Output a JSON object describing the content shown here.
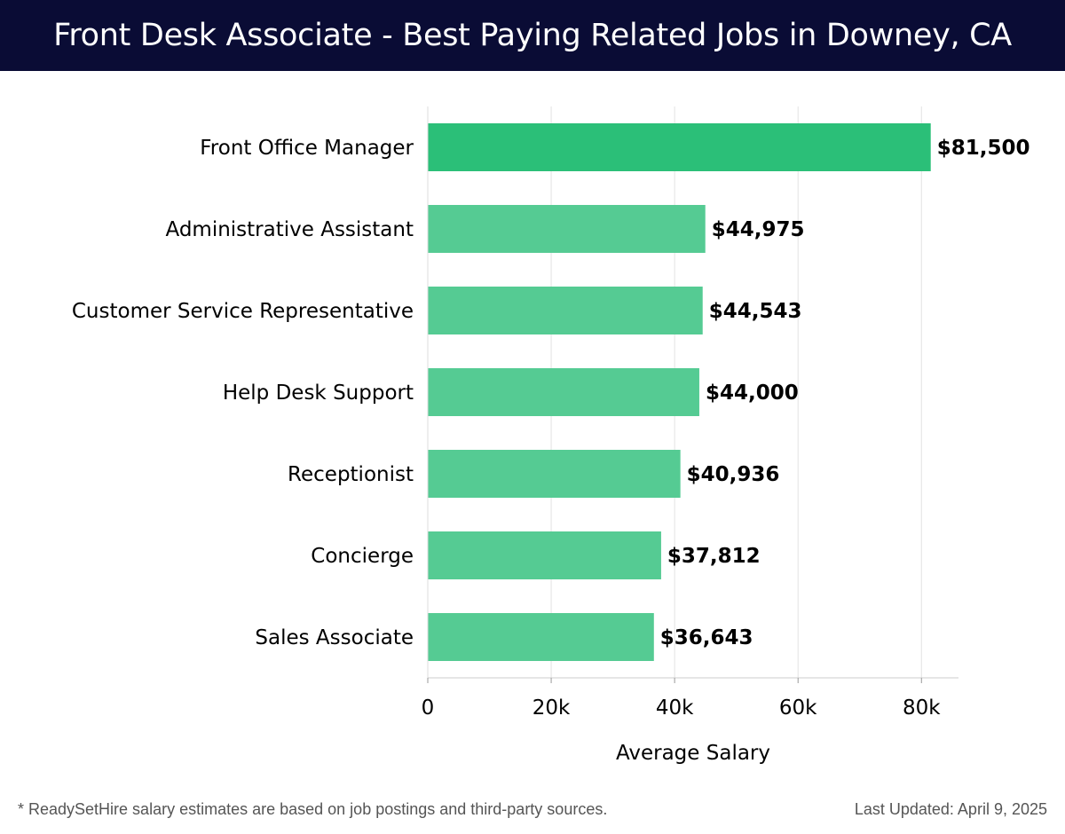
{
  "header": {
    "title": "Front Desk Associate - Best Paying Related Jobs in Downey, CA"
  },
  "chart_data": {
    "type": "bar",
    "orientation": "horizontal",
    "categories": [
      "Front Office Manager",
      "Administrative Assistant",
      "Customer Service Representative",
      "Help Desk Support",
      "Receptionist",
      "Concierge",
      "Sales Associate"
    ],
    "values": [
      81500,
      44975,
      44543,
      44000,
      40936,
      37812,
      36643
    ],
    "value_labels": [
      "$81,500",
      "$44,975",
      "$44,543",
      "$44,000",
      "$40,936",
      "$37,812",
      "$36,643"
    ],
    "xlabel": "Average Salary",
    "xlim": [
      0,
      86000
    ],
    "xticks": [
      0,
      20000,
      40000,
      60000,
      80000
    ],
    "xtick_labels": [
      "0",
      "20k",
      "40k",
      "60k",
      "80k"
    ],
    "grid": true,
    "colors": {
      "highlight": "#2bbf78",
      "bar": "#55cb93"
    }
  },
  "footer": {
    "note": "* ReadySetHire salary estimates are based on job postings and third-party sources.",
    "updated": "Last Updated: April 9, 2025"
  }
}
